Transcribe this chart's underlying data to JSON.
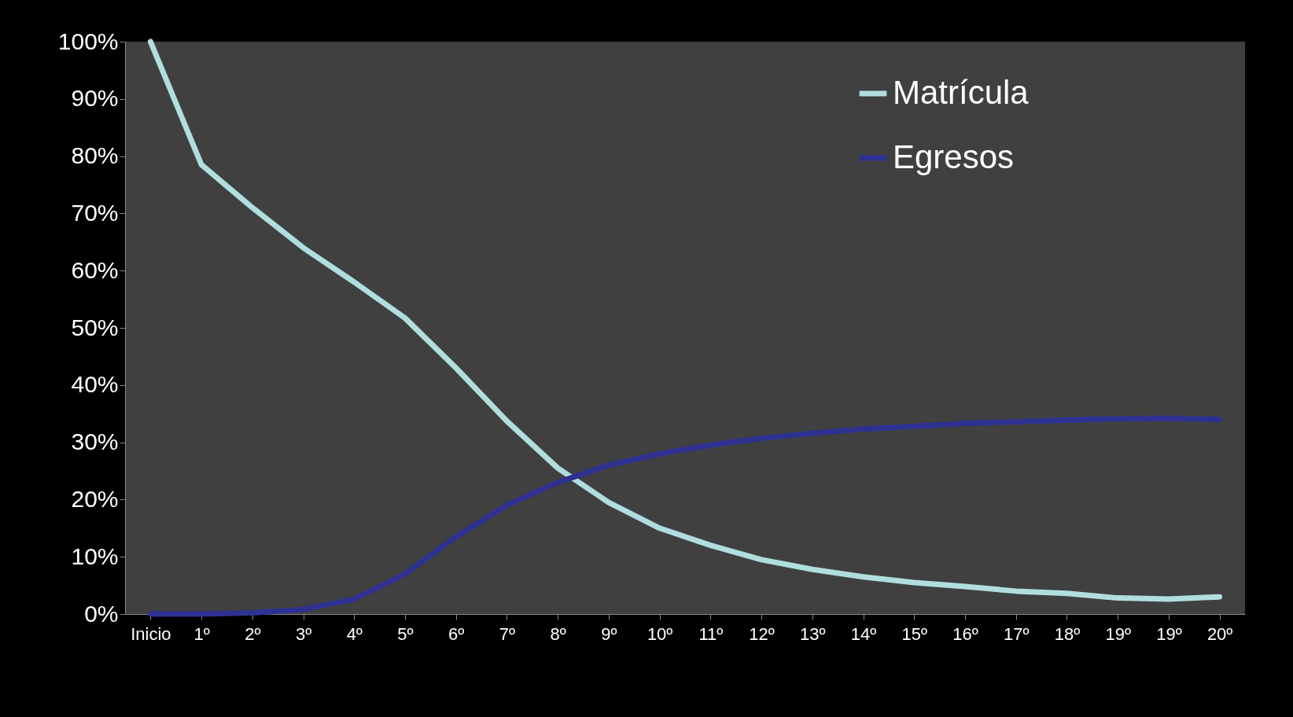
{
  "chart_data": {
    "type": "line",
    "categories": [
      "Inicio",
      "1º",
      "2º",
      "3º",
      "4º",
      "5º",
      "6º",
      "7º",
      "8º",
      "9º",
      "10º",
      "11º",
      "12º",
      "13º",
      "14º",
      "15º",
      "16º",
      "17º",
      "18º",
      "19º",
      "19º",
      "20º"
    ],
    "ylim": [
      0,
      100
    ],
    "yticks": [
      {
        "value": 0,
        "label": "0%"
      },
      {
        "value": 10,
        "label": "10%"
      },
      {
        "value": 20,
        "label": "20%"
      },
      {
        "value": 30,
        "label": "30%"
      },
      {
        "value": 40,
        "label": "40%"
      },
      {
        "value": 50,
        "label": "50%"
      },
      {
        "value": 60,
        "label": "60%"
      },
      {
        "value": 70,
        "label": "70%"
      },
      {
        "value": 80,
        "label": "80%"
      },
      {
        "value": 90,
        "label": "90%"
      },
      {
        "value": 100,
        "label": "100%"
      }
    ],
    "legend": "top right",
    "grid": false,
    "marker": "none",
    "line_style": "solid",
    "series": [
      {
        "name": "Matrícula",
        "color": "#b0dede",
        "values": [
          100,
          78.5,
          71,
          64,
          58,
          51.7,
          43,
          33.7,
          25.5,
          19.5,
          15,
          12,
          9.5,
          7.8,
          6.5,
          5.5,
          4.8,
          4,
          3.6,
          2.8,
          2.6,
          3
        ]
      },
      {
        "name": "Egresos",
        "color": "#2e3192",
        "values": [
          0,
          0,
          0.2,
          0.8,
          2.6,
          7,
          13.5,
          19,
          23,
          26,
          28,
          29.5,
          30.7,
          31.6,
          32.3,
          32.8,
          33.3,
          33.6,
          33.9,
          34.1,
          34.2,
          34
        ]
      }
    ]
  }
}
